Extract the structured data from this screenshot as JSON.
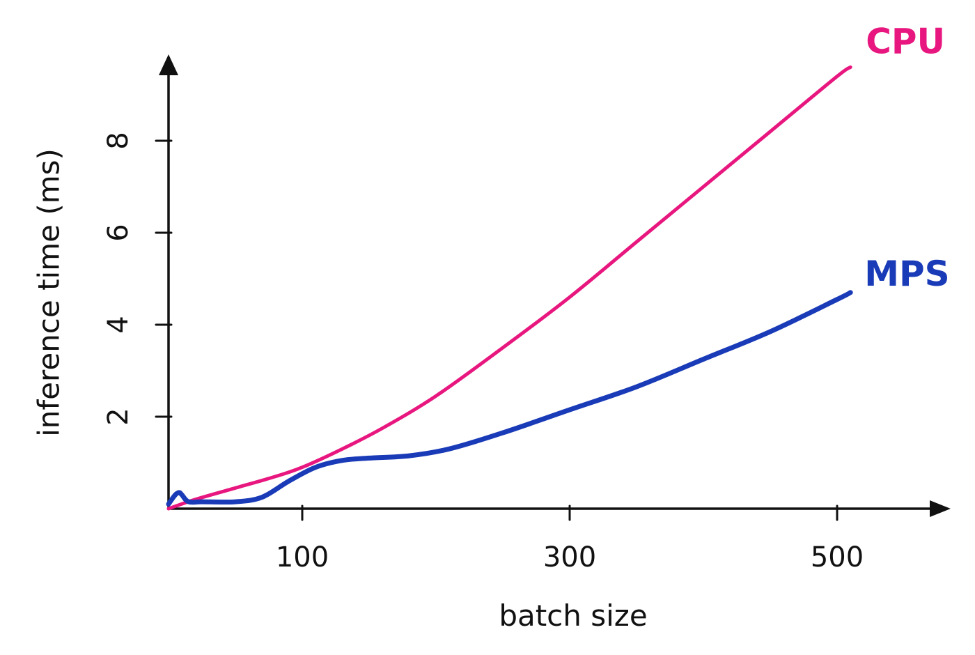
{
  "chart_data": {
    "type": "line",
    "title": "",
    "xlabel": "batch size",
    "ylabel": "inference time (ms)",
    "xlim": [
      0,
      580
    ],
    "ylim": [
      0,
      9.5
    ],
    "xticks": [
      100,
      300,
      500
    ],
    "yticks": [
      2,
      4,
      6,
      8
    ],
    "grid": false,
    "legend": "line-end labels",
    "series": [
      {
        "name": "CPU",
        "color": "#E8177F",
        "x": [
          0,
          20,
          50,
          80,
          100,
          130,
          160,
          200,
          250,
          300,
          350,
          400,
          450,
          500,
          510
        ],
        "y": [
          0,
          0.2,
          0.45,
          0.7,
          0.9,
          1.3,
          1.75,
          2.45,
          3.5,
          4.6,
          5.8,
          7.0,
          8.2,
          9.4,
          9.6
        ]
      },
      {
        "name": "MPS",
        "color": "#1A3BB8",
        "x": [
          0,
          5,
          8,
          10,
          15,
          25,
          50,
          70,
          90,
          110,
          130,
          150,
          180,
          210,
          250,
          300,
          350,
          400,
          450,
          500,
          510
        ],
        "y": [
          0.1,
          0.3,
          0.35,
          0.3,
          0.15,
          0.15,
          0.15,
          0.25,
          0.6,
          0.9,
          1.05,
          1.1,
          1.15,
          1.3,
          1.65,
          2.15,
          2.65,
          3.25,
          3.85,
          4.55,
          4.7
        ]
      }
    ]
  }
}
